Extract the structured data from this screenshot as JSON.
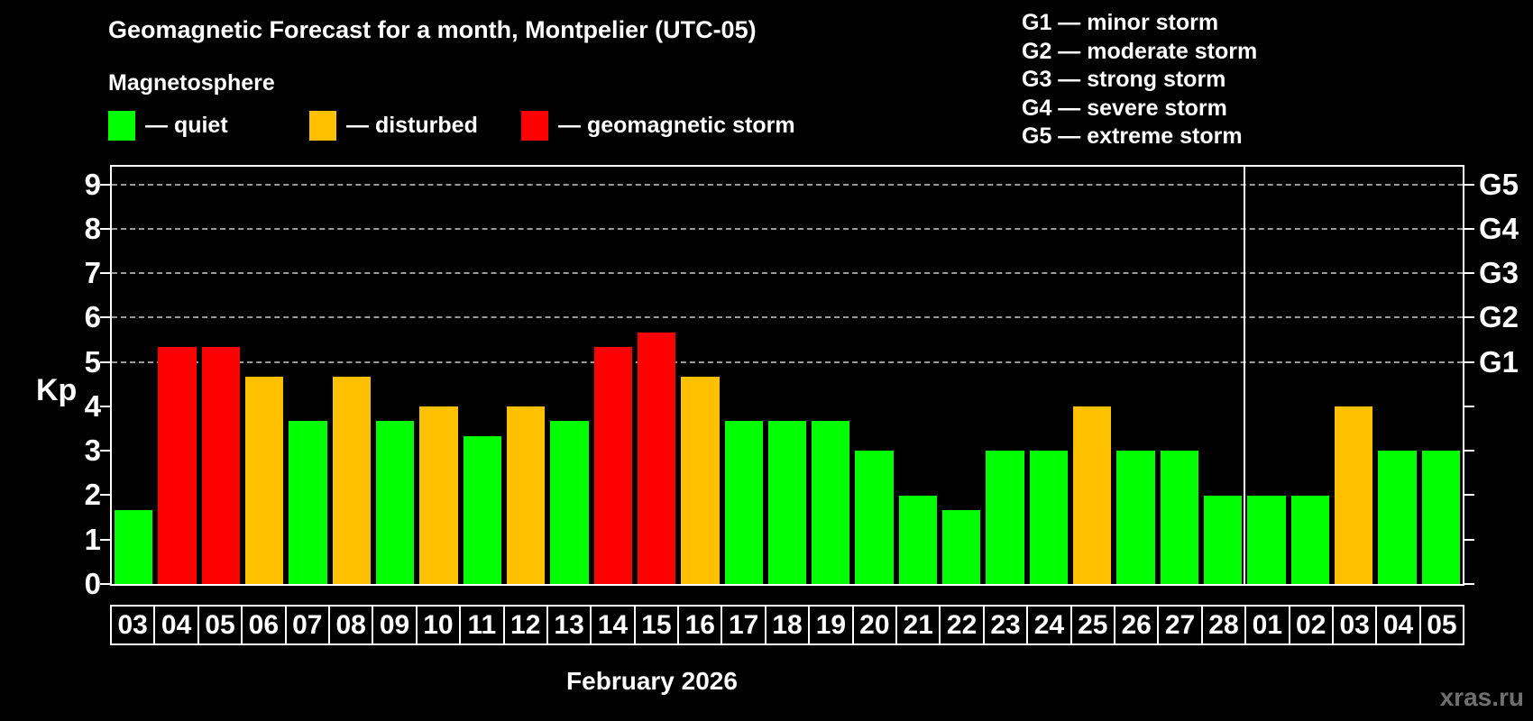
{
  "header": {
    "title": "Geomagnetic Forecast for a month, Montpelier (UTC-05)",
    "subtitle": "Magnetosphere"
  },
  "legend": {
    "items": [
      {
        "text": "— quiet",
        "color": "#00ff00"
      },
      {
        "text": "— disturbed",
        "color": "#ffc000"
      },
      {
        "text": "— geomagnetic storm",
        "color": "#ff0000"
      }
    ]
  },
  "g_scale_legend": {
    "lines": [
      "G1 — minor storm",
      "G2 — moderate storm",
      "G3 — strong storm",
      "G4 — severe storm",
      "G5 — extreme storm"
    ]
  },
  "watermark": "xras.ru",
  "chart_data": {
    "type": "bar",
    "title": "Geomagnetic Forecast for a month, Montpelier (UTC-05)",
    "subtitle": "Magnetosphere",
    "ylabel": "Kp",
    "xlabel": "February 2026",
    "ylim": [
      0,
      9.4
    ],
    "y_ticks": [
      0,
      1,
      2,
      3,
      4,
      5,
      6,
      7,
      8,
      9
    ],
    "gridlines_at": [
      5,
      6,
      7,
      8,
      9
    ],
    "grid_style": "dashed",
    "right_axis_labels": [
      {
        "value": 5,
        "label": "G1"
      },
      {
        "value": 6,
        "label": "G2"
      },
      {
        "value": 7,
        "label": "G3"
      },
      {
        "value": 8,
        "label": "G4"
      },
      {
        "value": 9,
        "label": "G5"
      }
    ],
    "categories": [
      "03",
      "04",
      "05",
      "06",
      "07",
      "08",
      "09",
      "10",
      "11",
      "12",
      "13",
      "14",
      "15",
      "16",
      "17",
      "18",
      "19",
      "20",
      "21",
      "22",
      "23",
      "24",
      "25",
      "26",
      "27",
      "28",
      "01",
      "02",
      "03",
      "04",
      "05"
    ],
    "values": [
      1.67,
      5.33,
      5.33,
      4.67,
      3.67,
      4.67,
      3.67,
      4,
      3.33,
      4,
      3.67,
      5.33,
      5.67,
      4.67,
      3.67,
      3.67,
      3.67,
      3,
      2,
      1.67,
      3,
      3,
      4,
      3,
      3,
      2,
      2,
      2,
      4,
      3,
      3
    ],
    "month_separator_after_index": 25,
    "colors": {
      "quiet": "#00ff00",
      "disturbed": "#ffc000",
      "storm": "#ff0000"
    },
    "color_rule": {
      "disturbed_min": 4,
      "storm_min": 5
    },
    "legend_position": "top",
    "grid_color": "#9a9a9a",
    "background": "#000000"
  }
}
